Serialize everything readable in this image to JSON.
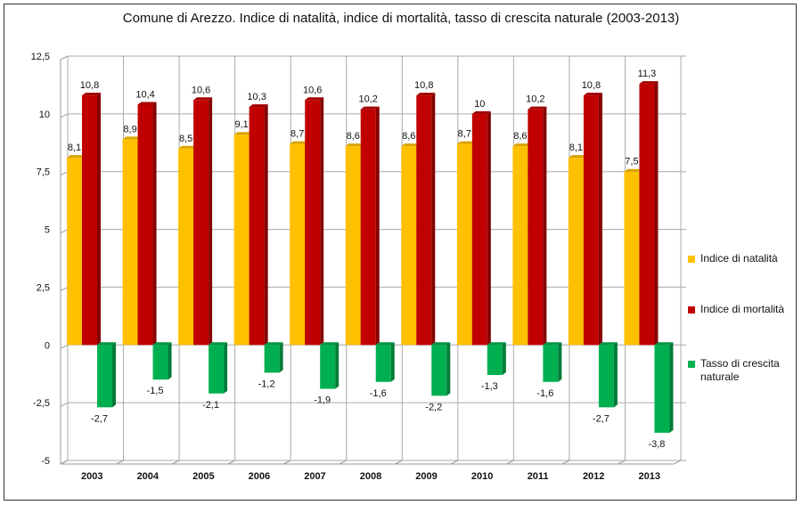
{
  "chart_data": {
    "type": "bar",
    "title": "Comune di Arezzo. Indice di natalità, indice di mortalità, tasso di crescita naturale (2003-2013)",
    "xlabel": "",
    "ylabel": "",
    "ylim": [
      -5,
      12.5
    ],
    "yticks": [
      "12,5",
      "10",
      "7,5",
      "5",
      "2,5",
      "0",
      "-2,5",
      "-5"
    ],
    "ytick_values": [
      12.5,
      10,
      7.5,
      5,
      2.5,
      0,
      -2.5,
      -5
    ],
    "grid": true,
    "legend_position": "right",
    "categories": [
      "2003",
      "2004",
      "2005",
      "2006",
      "2007",
      "2008",
      "2009",
      "2010",
      "2011",
      "2012",
      "2013"
    ],
    "series": [
      {
        "name": "Indice di natalità",
        "color": "#FFC000",
        "values": [
          8.1,
          8.9,
          8.5,
          9.1,
          8.7,
          8.6,
          8.6,
          8.7,
          8.6,
          8.1,
          7.5
        ]
      },
      {
        "name": "Indice di mortalità",
        "color": "#C00000",
        "values": [
          10.8,
          10.4,
          10.6,
          10.3,
          10.6,
          10.2,
          10.8,
          10,
          10.2,
          10.8,
          11.3
        ]
      },
      {
        "name": "Tasso di crescita naturale",
        "color": "#00B050",
        "values": [
          -2.7,
          -1.5,
          -2.1,
          -1.2,
          -1.9,
          -1.6,
          -2.2,
          -1.3,
          -1.6,
          -2.7,
          -3.8
        ]
      }
    ]
  }
}
